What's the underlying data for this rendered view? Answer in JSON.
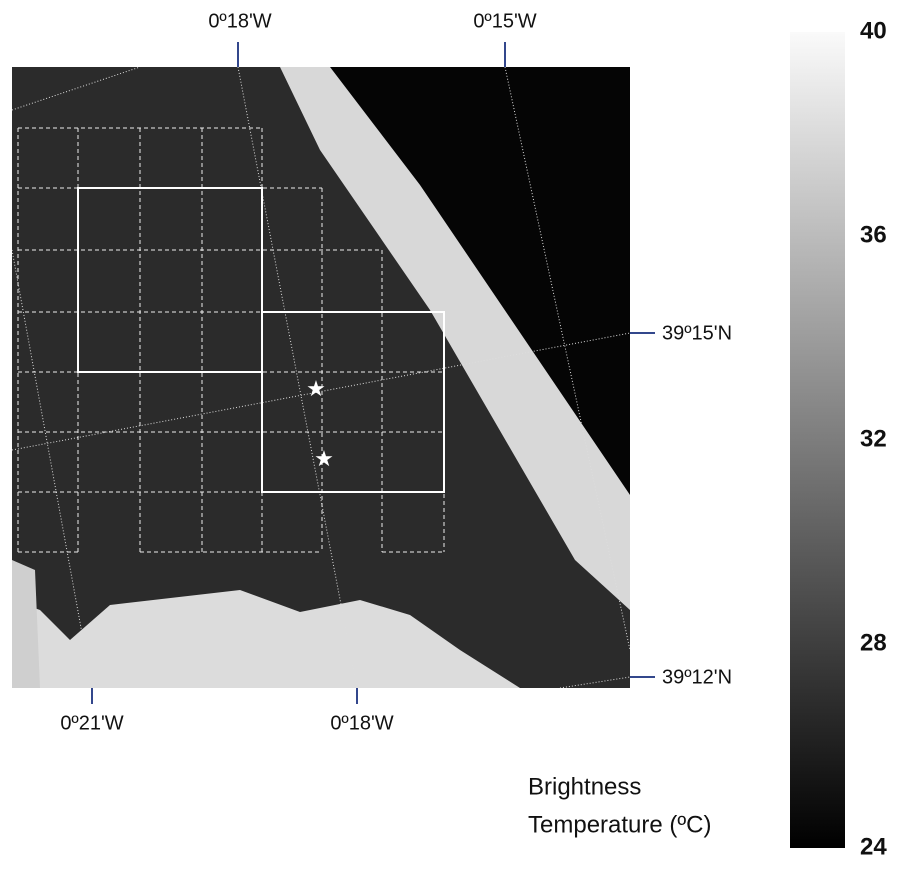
{
  "map": {
    "top_labels": [
      "0º18'W",
      "0º15'W"
    ],
    "right_labels": [
      "39º15'N",
      "39º12'N"
    ],
    "bottom_labels": [
      "0º21'W",
      "0º18'W"
    ]
  },
  "colorbar": {
    "title": [
      "Brightness",
      "Temperature (ºC)"
    ],
    "lim": [
      24,
      40
    ],
    "ticks": [
      24,
      28,
      32,
      36,
      40
    ]
  }
}
